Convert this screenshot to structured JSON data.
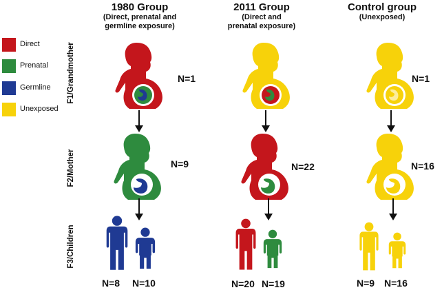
{
  "colors": {
    "direct": "#c4161c",
    "prenatal": "#2e8b3e",
    "germline": "#1f3a93",
    "unexposed": "#f7d20a"
  },
  "groups": [
    {
      "title": "1980 Group",
      "subtitle_line1": "(Direct, prenatal and",
      "subtitle_line2": "germline exposure)"
    },
    {
      "title": "2011 Group",
      "subtitle_line1": "(Direct and",
      "subtitle_line2": "prenatal exposure)"
    },
    {
      "title": "Control group",
      "subtitle_line1": "(Unexposed)",
      "subtitle_line2": ""
    }
  ],
  "legend": [
    {
      "label": "Direct",
      "color": "#c4161c"
    },
    {
      "label": "Prenatal",
      "color": "#2e8b3e"
    },
    {
      "label": "Germline",
      "color": "#1f3a93"
    },
    {
      "label": "Unexposed",
      "color": "#f7d20a"
    }
  ],
  "rows": {
    "f1": "F1/Grandmother",
    "f2": "F2/Mother",
    "f3": "F3/Children"
  },
  "counts": {
    "g1980": {
      "f1": "N=1",
      "f2": "N=9",
      "child1": "N=8",
      "child2": "N=10"
    },
    "g2011": {
      "f1": "",
      "f2": "N=22",
      "child1": "N=20",
      "child2": "N=19"
    },
    "control": {
      "f1": "N=1",
      "f2": "N=16",
      "child1": "N=9",
      "child2": "N=16"
    }
  }
}
